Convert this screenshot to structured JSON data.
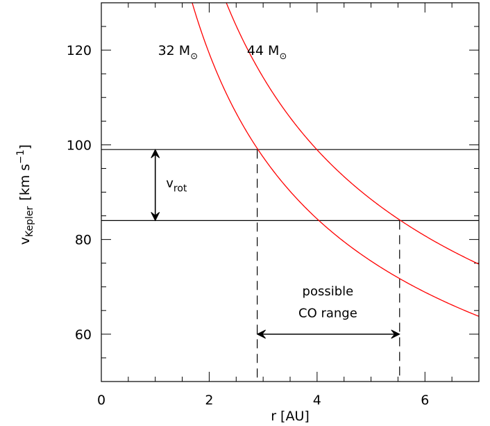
{
  "chart_data": {
    "type": "line",
    "xlabel": "r [AU]",
    "ylabel": {
      "base": "v",
      "sub": "Kepler",
      "unit_open": "[km s",
      "unit_sup": "−1",
      "unit_close": "]"
    },
    "xlim": [
      0,
      7
    ],
    "ylim": [
      50,
      130
    ],
    "x_major_ticks": [
      0,
      2,
      4,
      6
    ],
    "x_minor_step": 0.5,
    "y_major_ticks": [
      60,
      80,
      100,
      120
    ],
    "y_minor_step": 5,
    "series": [
      {
        "name": "32 M☉",
        "mass_msun": 32,
        "color": "#ff0000",
        "x": [
          1.5,
          2.0,
          2.5,
          2.89,
          3.5,
          4.0,
          4.5,
          5.0,
          5.5,
          6.0,
          6.5,
          7.0
        ],
        "y": [
          137.8,
          119.3,
          106.7,
          99.2,
          90.2,
          84.4,
          79.5,
          75.4,
          71.9,
          68.9,
          66.2,
          63.8
        ]
      },
      {
        "name": "44 M☉",
        "mass_msun": 44,
        "color": "#ff0000",
        "x": [
          2.0,
          2.5,
          3.0,
          3.5,
          4.0,
          4.5,
          5.0,
          5.53,
          6.0,
          6.5,
          7.0
        ],
        "y": [
          139.9,
          125.1,
          114.2,
          105.8,
          98.9,
          93.3,
          88.5,
          84.2,
          80.8,
          77.6,
          74.8
        ]
      }
    ],
    "hlines": [
      99.0,
      84.0
    ],
    "vlines": [
      2.89,
      5.53
    ],
    "annotations": {
      "vrot": {
        "base": "v",
        "sub": "rot",
        "x": 1.0,
        "y_from": 99.0,
        "y_to": 84.0,
        "label_x": 1.2,
        "label_y": 91.0
      },
      "co_range": {
        "line1": "possible",
        "line2": "CO range",
        "x_from": 2.89,
        "x_to": 5.53,
        "y": 60.0,
        "label_x": 4.2,
        "label_y1": 68.2,
        "label_y2": 63.6
      },
      "series_labels": [
        {
          "base": "32 M",
          "sym": "⊙",
          "x": 1.05,
          "y": 120.0
        },
        {
          "base": "44 M",
          "sym": "⊙",
          "x": 2.7,
          "y": 120.0
        }
      ]
    }
  }
}
